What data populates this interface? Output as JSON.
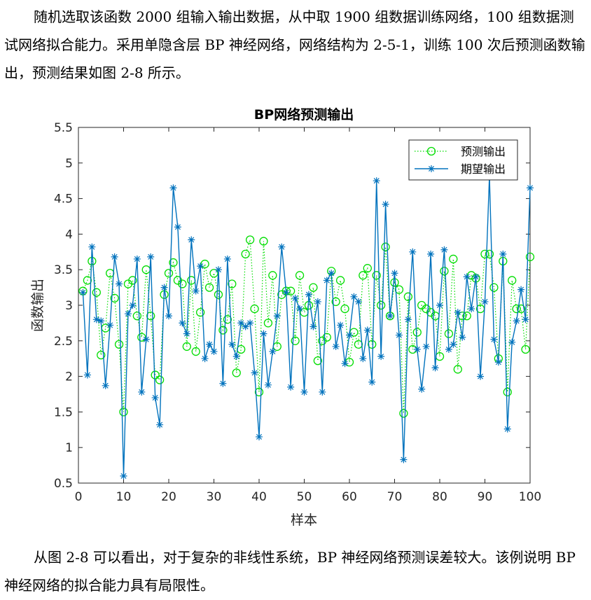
{
  "paragraph1": "随机选取该函数 2000 组输入输出数据，从中取 1900 组数据训练网络，100 组数据测试网络拟合能力。采用单隐含层 BP 神经网络，网络结构为 2-5-1，训练 100 次后预测函数输出，预测结果如图 2-8 所示。",
  "paragraph2": "从图 2-8 可以看出，对于复杂的非线性系统，BP 神经网络预测误差较大。该例说明 BP 神经网络的拟合能力具有局限性。",
  "chart_data": {
    "type": "line",
    "title": "BP网络预测输出",
    "xlabel": "样本",
    "ylabel": "函数输出",
    "xlim": [
      0,
      100
    ],
    "ylim": [
      0.5,
      5.5
    ],
    "xticks": [
      0,
      10,
      20,
      30,
      40,
      50,
      60,
      70,
      80,
      90,
      100
    ],
    "yticks": [
      0.5,
      1,
      1.5,
      2,
      2.5,
      3,
      3.5,
      4,
      4.5,
      5,
      5.5
    ],
    "legend_position": "top-right",
    "x": [
      1,
      2,
      3,
      4,
      5,
      6,
      7,
      8,
      9,
      10,
      11,
      12,
      13,
      14,
      15,
      16,
      17,
      18,
      19,
      20,
      21,
      22,
      23,
      24,
      25,
      26,
      27,
      28,
      29,
      30,
      31,
      32,
      33,
      34,
      35,
      36,
      37,
      38,
      39,
      40,
      41,
      42,
      43,
      44,
      45,
      46,
      47,
      48,
      49,
      50,
      51,
      52,
      53,
      54,
      55,
      56,
      57,
      58,
      59,
      60,
      61,
      62,
      63,
      64,
      65,
      66,
      67,
      68,
      69,
      70,
      71,
      72,
      73,
      74,
      75,
      76,
      77,
      78,
      79,
      80,
      81,
      82,
      83,
      84,
      85,
      86,
      87,
      88,
      89,
      90,
      91,
      92,
      93,
      94,
      95,
      96,
      97,
      98,
      99,
      100
    ],
    "series": [
      {
        "name": "预测输出",
        "color": "#00dd00",
        "marker": "circle",
        "line": "dotted",
        "values": [
          3.2,
          3.35,
          3.62,
          3.18,
          2.3,
          2.68,
          3.45,
          3.1,
          2.45,
          1.5,
          3.3,
          3.35,
          2.85,
          2.55,
          3.5,
          2.85,
          2.02,
          1.95,
          3.15,
          3.45,
          3.6,
          3.35,
          3.3,
          2.42,
          3.35,
          2.35,
          2.9,
          3.58,
          3.25,
          3.45,
          3.15,
          2.65,
          2.8,
          3.3,
          2.05,
          2.38,
          3.72,
          3.92,
          2.95,
          1.78,
          3.9,
          2.75,
          3.42,
          2.42,
          3.15,
          3.2,
          3.2,
          2.5,
          3.42,
          2.9,
          3.0,
          3.25,
          2.22,
          2.5,
          2.55,
          3.48,
          3.05,
          3.35,
          2.95,
          2.2,
          2.62,
          2.45,
          3.42,
          3.52,
          2.45,
          3.42,
          3.0,
          3.82,
          2.85,
          3.32,
          3.22,
          1.48,
          3.12,
          2.38,
          2.62,
          3.0,
          2.95,
          2.9,
          2.85,
          2.28,
          3.48,
          2.6,
          3.65,
          2.1,
          2.85,
          2.85,
          3.42,
          3.38,
          2.95,
          3.72,
          3.72,
          3.25,
          2.25,
          3.62,
          1.78,
          3.35,
          2.95,
          2.95,
          2.38,
          3.68
        ]
      },
      {
        "name": "期望输出",
        "color": "#0072bd",
        "marker": "asterisk",
        "line": "solid",
        "values": [
          3.18,
          2.02,
          3.82,
          2.8,
          2.78,
          1.87,
          2.72,
          3.68,
          3.3,
          0.6,
          2.88,
          3.0,
          3.65,
          1.78,
          2.52,
          3.68,
          1.7,
          1.32,
          3.25,
          2.85,
          4.65,
          4.1,
          2.75,
          2.6,
          3.92,
          3.2,
          3.55,
          2.25,
          2.45,
          2.35,
          3.5,
          1.9,
          3.65,
          2.45,
          2.28,
          2.75,
          2.7,
          2.75,
          2.05,
          1.15,
          2.6,
          1.88,
          2.35,
          2.85,
          3.82,
          3.18,
          1.85,
          3.1,
          2.95,
          1.78,
          3.15,
          2.7,
          3.05,
          1.78,
          3.35,
          3.45,
          2.42,
          2.72,
          2.18,
          2.58,
          3.12,
          3.05,
          2.25,
          2.65,
          1.92,
          4.75,
          2.28,
          4.42,
          2.85,
          3.45,
          2.58,
          0.83,
          2.8,
          3.75,
          2.38,
          1.82,
          2.42,
          3.72,
          2.12,
          3.0,
          3.78,
          2.38,
          2.45,
          2.9,
          2.55,
          3.4,
          2.95,
          3.4,
          2.0,
          3.05,
          4.82,
          2.52,
          2.2,
          3.72,
          1.26,
          2.48,
          2.78,
          3.22,
          2.8,
          4.65
        ]
      }
    ]
  }
}
